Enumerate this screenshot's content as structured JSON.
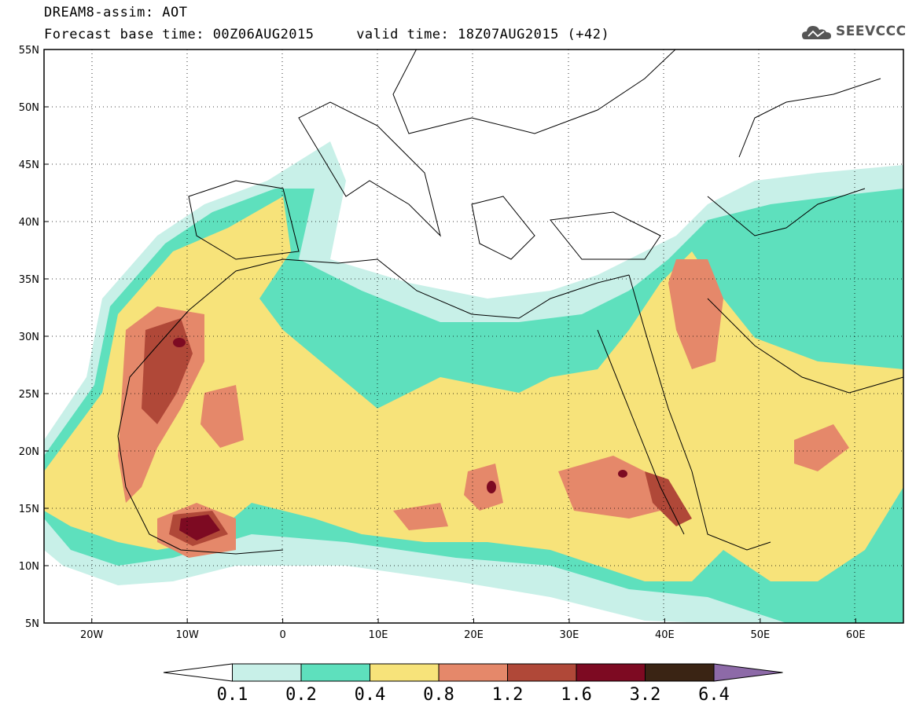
{
  "header": {
    "title_line1": "DREAM8-assim: AOT",
    "title_line2": "Forecast base time: 00Z06AUG2015     valid time: 18Z07AUG2015 (+42)",
    "logo_text": "SEEVCCC"
  },
  "map": {
    "lat_labels": [
      "55N",
      "50N",
      "45N",
      "40N",
      "35N",
      "30N",
      "25N",
      "20N",
      "15N",
      "10N",
      "5N"
    ],
    "lon_labels": [
      "20W",
      "10W",
      "0",
      "10E",
      "20E",
      "30E",
      "40E",
      "50E",
      "60E"
    ],
    "extent": {
      "lon_min": -25,
      "lon_max": 65,
      "lat_min": 5,
      "lat_max": 55
    }
  },
  "colorbar": {
    "levels": [
      "0.1",
      "0.2",
      "0.4",
      "0.8",
      "1.2",
      "1.6",
      "3.2",
      "6.4"
    ],
    "colors": [
      "#ffffff",
      "#c8f0e8",
      "#5ee0bd",
      "#f7e37a",
      "#e5886a",
      "#b04838",
      "#7d0a22",
      "#3a2414",
      "#8d6aa8"
    ]
  }
}
